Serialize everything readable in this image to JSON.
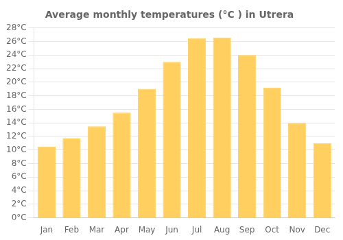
{
  "chart_data": {
    "type": "bar",
    "title": "Average monthly temperatures (°C ) in Utrera",
    "categories": [
      "Jan",
      "Feb",
      "Mar",
      "Apr",
      "May",
      "Jun",
      "Jul",
      "Aug",
      "Sep",
      "Oct",
      "Nov",
      "Dec"
    ],
    "values": [
      10.5,
      11.7,
      13.5,
      15.5,
      19.0,
      23.0,
      26.5,
      26.6,
      24.0,
      19.2,
      14.0,
      11.0
    ],
    "color": "#FFD060",
    "ylim": [
      0,
      28
    ],
    "yticks": [
      {
        "value": 0,
        "label": "0°C"
      },
      {
        "value": 2,
        "label": "2°C"
      },
      {
        "value": 4,
        "label": "4°C"
      },
      {
        "value": 6,
        "label": "6°C"
      },
      {
        "value": 8,
        "label": "8°C"
      },
      {
        "value": 10,
        "label": "10°C"
      },
      {
        "value": 12,
        "label": "12°C"
      },
      {
        "value": 14,
        "label": "14°C"
      },
      {
        "value": 16,
        "label": "16°C"
      },
      {
        "value": 18,
        "label": "18°C"
      },
      {
        "value": 20,
        "label": "20°C"
      },
      {
        "value": 22,
        "label": "22°C"
      },
      {
        "value": 24,
        "label": "24°C"
      },
      {
        "value": 26,
        "label": "26°C"
      },
      {
        "value": 28,
        "label": "28°C"
      }
    ],
    "grid": "y"
  }
}
